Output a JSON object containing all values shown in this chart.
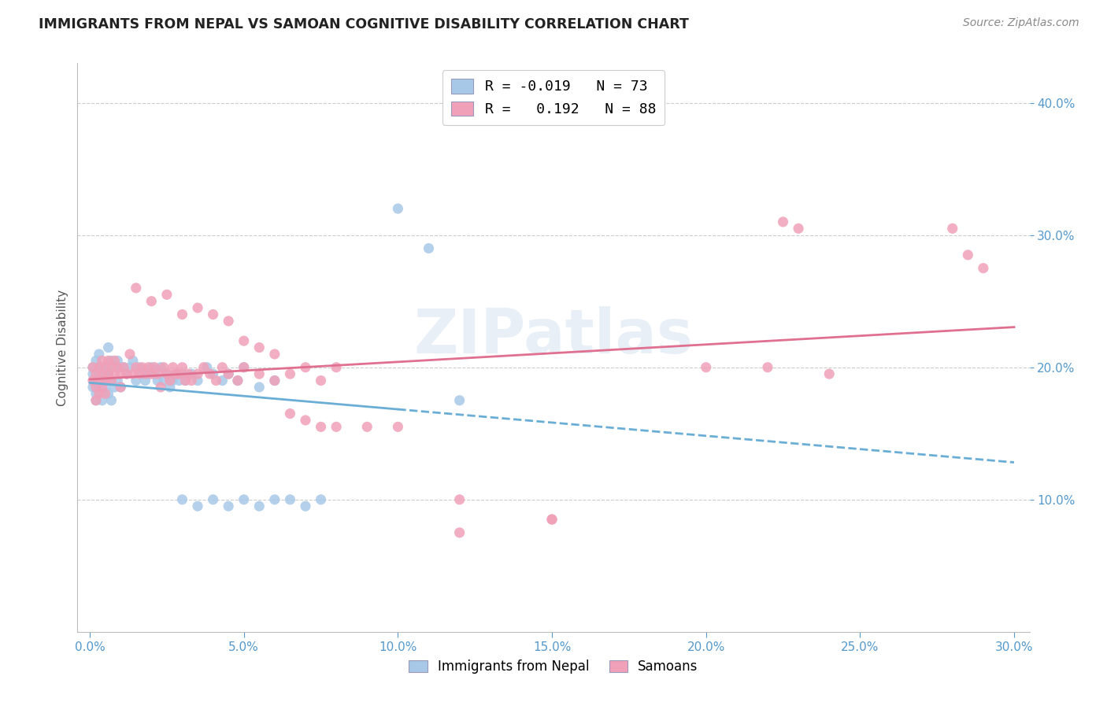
{
  "title": "IMMIGRANTS FROM NEPAL VS SAMOAN COGNITIVE DISABILITY CORRELATION CHART",
  "source": "Source: ZipAtlas.com",
  "ylabel": "Cognitive Disability",
  "xlim": [
    0.0,
    0.3
  ],
  "ylim": [
    0.0,
    0.42
  ],
  "xticks": [
    0.0,
    0.05,
    0.1,
    0.15,
    0.2,
    0.25,
    0.3
  ],
  "yticks": [
    0.1,
    0.2,
    0.3,
    0.4
  ],
  "ytick_labels": [
    "10.0%",
    "20.0%",
    "30.0%",
    "40.0%"
  ],
  "xtick_labels": [
    "0.0%",
    "5.0%",
    "10.0%",
    "15.0%",
    "20.0%",
    "25.0%",
    "30.0%"
  ],
  "watermark": "ZIPatlas",
  "legend_R_nepal": "-0.019",
  "legend_N_nepal": "73",
  "legend_R_samoan": "0.192",
  "legend_N_samoan": "88",
  "color_nepal": "#a8c8e8",
  "color_samoan": "#f0a0b8",
  "trend_color_nepal": "#6aaed6",
  "trend_color_samoan": "#e07090",
  "nepal_x": [
    0.001,
    0.001,
    0.001,
    0.002,
    0.002,
    0.002,
    0.002,
    0.003,
    0.003,
    0.003,
    0.003,
    0.004,
    0.004,
    0.004,
    0.005,
    0.005,
    0.005,
    0.006,
    0.006,
    0.006,
    0.007,
    0.007,
    0.007,
    0.008,
    0.008,
    0.009,
    0.009,
    0.01,
    0.01,
    0.011,
    0.012,
    0.013,
    0.014,
    0.015,
    0.016,
    0.017,
    0.018,
    0.019,
    0.02,
    0.021,
    0.022,
    0.023,
    0.024,
    0.025,
    0.026,
    0.027,
    0.028,
    0.029,
    0.03,
    0.031,
    0.033,
    0.035,
    0.038,
    0.04,
    0.043,
    0.045,
    0.048,
    0.05,
    0.055,
    0.06,
    0.03,
    0.035,
    0.04,
    0.045,
    0.05,
    0.055,
    0.06,
    0.065,
    0.07,
    0.075,
    0.1,
    0.11,
    0.12
  ],
  "nepal_y": [
    0.195,
    0.2,
    0.185,
    0.205,
    0.19,
    0.18,
    0.175,
    0.2,
    0.195,
    0.185,
    0.21,
    0.2,
    0.19,
    0.175,
    0.2,
    0.195,
    0.185,
    0.215,
    0.195,
    0.18,
    0.205,
    0.19,
    0.175,
    0.2,
    0.185,
    0.205,
    0.19,
    0.2,
    0.185,
    0.2,
    0.195,
    0.2,
    0.205,
    0.19,
    0.2,
    0.195,
    0.19,
    0.195,
    0.2,
    0.195,
    0.19,
    0.2,
    0.19,
    0.195,
    0.185,
    0.19,
    0.195,
    0.19,
    0.195,
    0.19,
    0.195,
    0.19,
    0.2,
    0.195,
    0.19,
    0.195,
    0.19,
    0.2,
    0.185,
    0.19,
    0.1,
    0.095,
    0.1,
    0.095,
    0.1,
    0.095,
    0.1,
    0.1,
    0.095,
    0.1,
    0.32,
    0.29,
    0.175
  ],
  "samoan_x": [
    0.001,
    0.001,
    0.002,
    0.002,
    0.002,
    0.003,
    0.003,
    0.003,
    0.004,
    0.004,
    0.004,
    0.005,
    0.005,
    0.005,
    0.006,
    0.006,
    0.007,
    0.007,
    0.008,
    0.008,
    0.009,
    0.01,
    0.01,
    0.011,
    0.012,
    0.013,
    0.014,
    0.015,
    0.016,
    0.017,
    0.018,
    0.019,
    0.02,
    0.021,
    0.022,
    0.023,
    0.024,
    0.025,
    0.026,
    0.027,
    0.028,
    0.029,
    0.03,
    0.031,
    0.032,
    0.033,
    0.035,
    0.037,
    0.039,
    0.041,
    0.043,
    0.045,
    0.048,
    0.05,
    0.055,
    0.06,
    0.065,
    0.07,
    0.075,
    0.08,
    0.015,
    0.02,
    0.025,
    0.03,
    0.035,
    0.04,
    0.045,
    0.05,
    0.055,
    0.06,
    0.065,
    0.07,
    0.075,
    0.08,
    0.09,
    0.1,
    0.12,
    0.15,
    0.2,
    0.22,
    0.225,
    0.23,
    0.24,
    0.28,
    0.285,
    0.29,
    0.12,
    0.15
  ],
  "samoan_y": [
    0.2,
    0.19,
    0.195,
    0.185,
    0.175,
    0.2,
    0.19,
    0.18,
    0.205,
    0.195,
    0.185,
    0.2,
    0.19,
    0.18,
    0.205,
    0.195,
    0.2,
    0.19,
    0.205,
    0.195,
    0.2,
    0.195,
    0.185,
    0.2,
    0.195,
    0.21,
    0.195,
    0.2,
    0.195,
    0.2,
    0.195,
    0.2,
    0.195,
    0.2,
    0.195,
    0.185,
    0.2,
    0.195,
    0.19,
    0.2,
    0.195,
    0.195,
    0.2,
    0.19,
    0.195,
    0.19,
    0.195,
    0.2,
    0.195,
    0.19,
    0.2,
    0.195,
    0.19,
    0.2,
    0.195,
    0.19,
    0.195,
    0.2,
    0.19,
    0.2,
    0.26,
    0.25,
    0.255,
    0.24,
    0.245,
    0.24,
    0.235,
    0.22,
    0.215,
    0.21,
    0.165,
    0.16,
    0.155,
    0.155,
    0.155,
    0.155,
    0.1,
    0.085,
    0.2,
    0.2,
    0.31,
    0.305,
    0.195,
    0.305,
    0.285,
    0.275,
    0.075,
    0.085
  ]
}
